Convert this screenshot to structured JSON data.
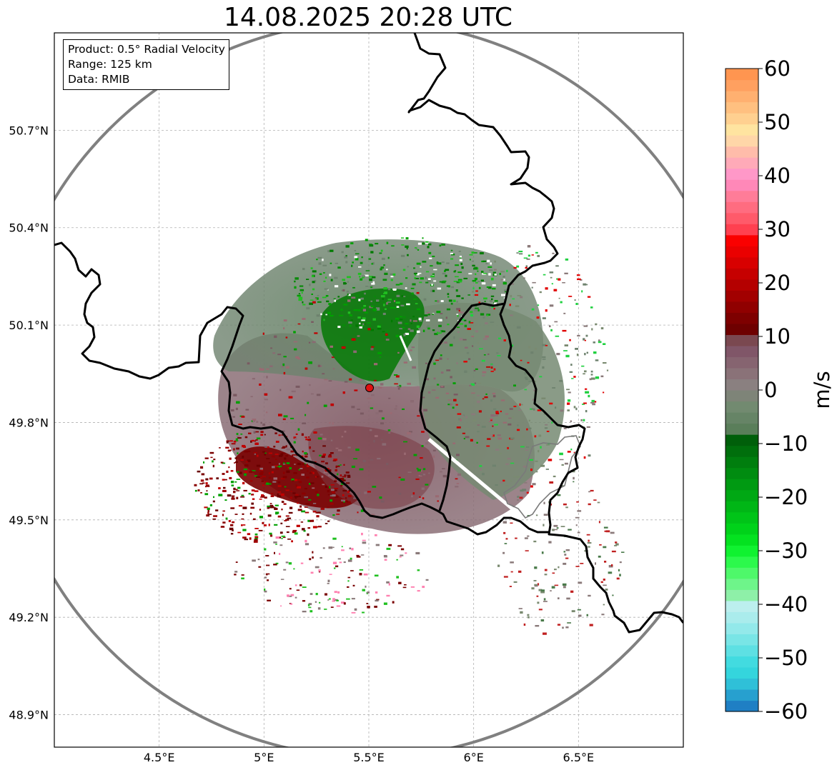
{
  "title": "14.08.2025 20:28 UTC",
  "info": {
    "product": "Product: 0.5° Radial Velocity",
    "range": "Range: 125 km",
    "source": "Data: RMIB"
  },
  "axes": {
    "lon_ticks": [
      {
        "value": 4.5,
        "label": "4.5°E"
      },
      {
        "value": 5.0,
        "label": "5°E"
      },
      {
        "value": 5.5,
        "label": "5.5°E"
      },
      {
        "value": 6.0,
        "label": "6°E"
      },
      {
        "value": 6.5,
        "label": "6.5°E"
      }
    ],
    "lat_ticks": [
      {
        "value": 50.7,
        "label": "50.7°N"
      },
      {
        "value": 50.4,
        "label": "50.4°N"
      },
      {
        "value": 50.1,
        "label": "50.1°N"
      },
      {
        "value": 49.8,
        "label": "49.8°N"
      },
      {
        "value": 49.5,
        "label": "49.5°N"
      },
      {
        "value": 49.2,
        "label": "49.2°N"
      },
      {
        "value": 48.9,
        "label": "48.9°N"
      }
    ],
    "lon_range": [
      4.0,
      7.0
    ],
    "lat_range": [
      48.8,
      51.0
    ]
  },
  "radar_site": {
    "lon": 5.5,
    "lat": 49.914
  },
  "colorbar": {
    "label": "m/s",
    "min": -60,
    "max": 60,
    "ticks": [
      {
        "value": 60,
        "label": "60"
      },
      {
        "value": 50,
        "label": "50"
      },
      {
        "value": 40,
        "label": "40"
      },
      {
        "value": 30,
        "label": "30"
      },
      {
        "value": 20,
        "label": "20"
      },
      {
        "value": 10,
        "label": "10"
      },
      {
        "value": 0,
        "label": "0"
      },
      {
        "value": -10,
        "label": "−10"
      },
      {
        "value": -20,
        "label": "−20"
      },
      {
        "value": -30,
        "label": "−30"
      },
      {
        "value": -40,
        "label": "−40"
      },
      {
        "value": -50,
        "label": "−50"
      },
      {
        "value": -60,
        "label": "−60"
      }
    ],
    "colors": [
      "#1f7fc4",
      "#27a0cf",
      "#2fc0d8",
      "#34d5dd",
      "#42dbe0",
      "#5ee0e3",
      "#79e5e6",
      "#93e9ea",
      "#aaecec",
      "#bcefee",
      "#8ef0a8",
      "#6ef58a",
      "#4ef86a",
      "#2cf94c",
      "#10f230",
      "#04e220",
      "#00d21a",
      "#00c418",
      "#00b616",
      "#00a814",
      "#009a12",
      "#008c10",
      "#007e0e",
      "#006f0c",
      "#005f0a",
      "#5a7e5a",
      "#668466",
      "#728a70",
      "#7e8478",
      "#8a8080",
      "#8a7278",
      "#866470",
      "#805668",
      "#7a4850",
      "#6e0000",
      "#7e0000",
      "#900000",
      "#a20000",
      "#b40000",
      "#c60000",
      "#d80000",
      "#ea0000",
      "#fa0000",
      "#ff4050",
      "#ff5a6a",
      "#ff6c80",
      "#ff7c98",
      "#ff88b8",
      "#ff98c8",
      "#ffaab8",
      "#ffbcaa",
      "#ffd6a8",
      "#ffe4a0",
      "#ffd090",
      "#ffc080",
      "#ffb070",
      "#ffa060",
      "#ff9550"
    ]
  },
  "legend_colors": {
    "outbound_red": "#7a0000",
    "inbound_green": "#007a00",
    "near_zero_mauve": "#8a6a72",
    "near_zero_gray": "#6e826e",
    "range_ring": "#808080",
    "border": "#000000",
    "site_marker": "#e01010"
  }
}
